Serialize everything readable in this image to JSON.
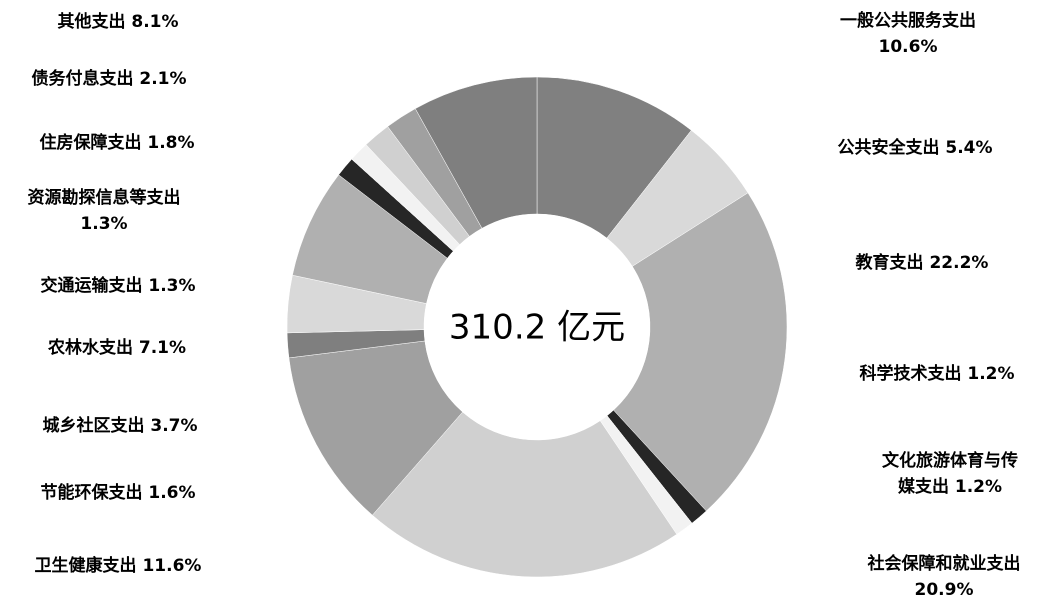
{
  "chart_data": {
    "type": "pie",
    "style": "donut",
    "center_text": "310.2 亿元",
    "series": [
      {
        "name": "一般公共服务支出",
        "value": 10.6,
        "label": "10.6%",
        "color": "#808080"
      },
      {
        "name": "公共安全支出",
        "value": 5.4,
        "label": "5.4%",
        "color": "#d9d9d9"
      },
      {
        "name": "教育支出",
        "value": 22.2,
        "label": "22.2%",
        "color": "#b0b0b0"
      },
      {
        "name": "科学技术支出",
        "value": 1.2,
        "label": "1.2%",
        "color": "#262626"
      },
      {
        "name": "文化旅游体育与传媒支出",
        "value": 1.2,
        "label": "1.2%",
        "color": "#f2f2f2"
      },
      {
        "name": "社会保障和就业支出",
        "value": 20.9,
        "label": "20.9%",
        "color": "#d0d0d0"
      },
      {
        "name": "卫生健康支出",
        "value": 11.6,
        "label": "11.6%",
        "color": "#a0a0a0"
      },
      {
        "name": "节能环保支出",
        "value": 1.6,
        "label": "1.6%",
        "color": "#7f7f7f"
      },
      {
        "name": "城乡社区支出",
        "value": 3.7,
        "label": "3.7%",
        "color": "#d9d9d9"
      },
      {
        "name": "农林水支出",
        "value": 7.1,
        "label": "7.1%",
        "color": "#b0b0b0"
      },
      {
        "name": "交通运输支出",
        "value": 1.3,
        "label": "1.3%",
        "color": "#262626"
      },
      {
        "name": "资源勘探信息等支出",
        "value": 1.3,
        "label": "1.3%",
        "color": "#f2f2f2"
      },
      {
        "name": "住房保障支出",
        "value": 1.8,
        "label": "1.8%",
        "color": "#d0d0d0"
      },
      {
        "name": "债务付息支出",
        "value": 2.1,
        "label": "2.1%",
        "color": "#a0a0a0"
      },
      {
        "name": "其他支出",
        "value": 8.1,
        "label": "8.1%",
        "color": "#7f7f7f"
      }
    ]
  }
}
